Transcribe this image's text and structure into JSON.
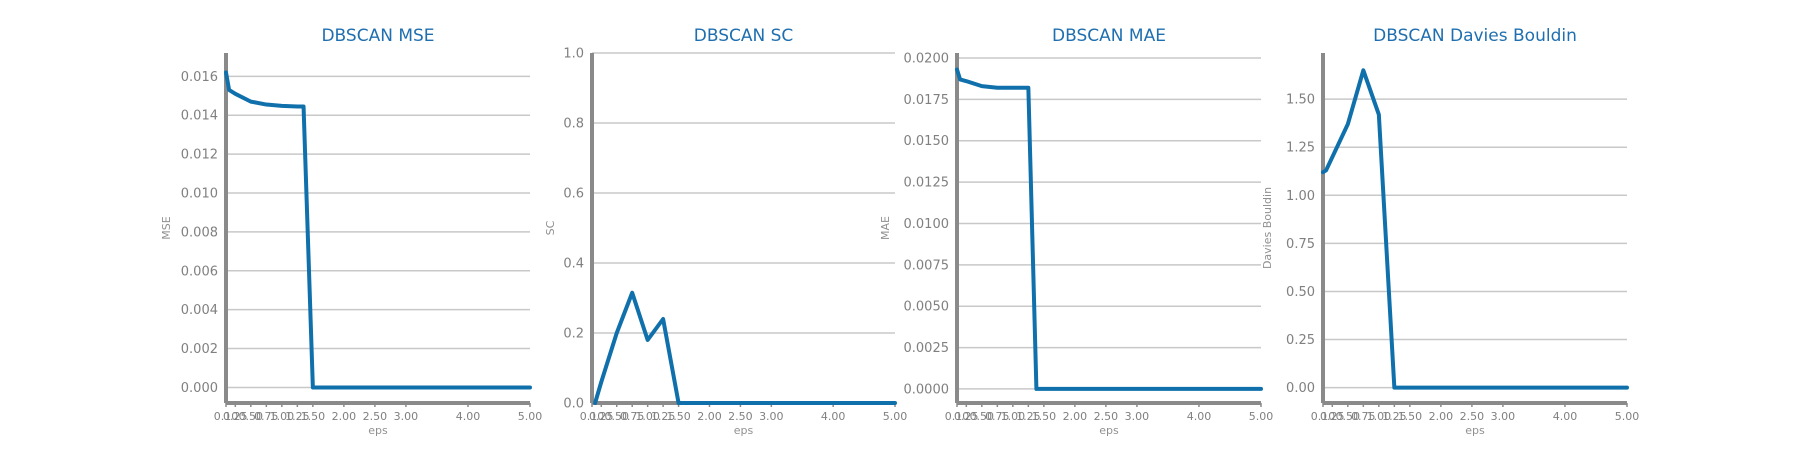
{
  "chart_data": [
    {
      "type": "line",
      "title": "DBSCAN MSE",
      "xlabel": "eps",
      "ylabel": "MSE",
      "xlim": [
        0.1,
        5.0
      ],
      "ylim": [
        -0.0008,
        0.0172
      ],
      "xticks": [
        0.1,
        0.25,
        0.5,
        0.75,
        1.0,
        1.25,
        1.5,
        2.0,
        2.5,
        3.0,
        4.0,
        5.0
      ],
      "xtick_labels": [
        "0.10",
        "0.25",
        "0.50",
        "0.75",
        "1.00",
        "1.25",
        "1.50",
        "2.00",
        "2.50",
        "3.00",
        "4.00",
        "5.00"
      ],
      "yticks": [
        0.0,
        0.002,
        0.004,
        0.006,
        0.008,
        0.01,
        0.012,
        0.014,
        0.016
      ],
      "ytick_labels": [
        "0.000",
        "0.002",
        "0.004",
        "0.006",
        "0.008",
        "0.010",
        "0.012",
        "0.014",
        "0.016"
      ],
      "grid": true,
      "x": [
        0.1,
        0.15,
        0.25,
        0.5,
        0.75,
        1.0,
        1.25,
        1.35,
        1.5,
        2.0,
        2.5,
        3.0,
        4.0,
        5.0
      ],
      "series": [
        {
          "values": [
            0.0162,
            0.0153,
            0.0151,
            0.0147,
            0.01455,
            0.01448,
            0.01445,
            0.01445,
            0.0,
            0.0,
            0.0,
            0.0,
            0.0,
            0.0
          ]
        }
      ]
    },
    {
      "type": "line",
      "title": "DBSCAN SC",
      "xlabel": "eps",
      "ylabel": "SC",
      "xlim": [
        0.1,
        5.0
      ],
      "ylim": [
        0.0,
        1.0
      ],
      "xticks": [
        0.1,
        0.25,
        0.5,
        0.75,
        1.0,
        1.25,
        1.5,
        2.0,
        2.5,
        3.0,
        4.0,
        5.0
      ],
      "xtick_labels": [
        "0.10",
        "0.25",
        "0.50",
        "0.75",
        "1.00",
        "1.25",
        "1.50",
        "2.00",
        "2.50",
        "3.00",
        "4.00",
        "5.00"
      ],
      "yticks": [
        0.0,
        0.2,
        0.4,
        0.6,
        0.8,
        1.0
      ],
      "ytick_labels": [
        "0.0",
        "0.2",
        "0.4",
        "0.6",
        "0.8",
        "1.0"
      ],
      "grid": true,
      "x": [
        0.15,
        0.2,
        0.25,
        0.5,
        0.75,
        1.0,
        1.25,
        1.5,
        2.0,
        2.5,
        3.0,
        4.0,
        5.0
      ],
      "series": [
        {
          "values": [
            0.0,
            0.03,
            0.06,
            0.2,
            0.315,
            0.18,
            0.24,
            0.0,
            0.0,
            0.0,
            0.0,
            0.0,
            0.0
          ]
        }
      ]
    },
    {
      "type": "line",
      "title": "DBSCAN MAE",
      "xlabel": "eps",
      "ylabel": "MAE",
      "xlim": [
        0.1,
        5.0
      ],
      "ylim": [
        -0.00085,
        0.0203
      ],
      "xticks": [
        0.1,
        0.25,
        0.5,
        0.75,
        1.0,
        1.25,
        1.5,
        2.0,
        2.5,
        3.0,
        4.0,
        5.0
      ],
      "xtick_labels": [
        "0.10",
        "0.25",
        "0.50",
        "0.75",
        "1.00",
        "1.25",
        "1.50",
        "2.00",
        "2.50",
        "3.00",
        "4.00",
        "5.00"
      ],
      "yticks": [
        0.0,
        0.0025,
        0.005,
        0.0075,
        0.01,
        0.0125,
        0.015,
        0.0175,
        0.02
      ],
      "ytick_labels": [
        "0.0000",
        "0.0025",
        "0.0050",
        "0.0075",
        "0.0100",
        "0.0125",
        "0.0150",
        "0.0175",
        "0.0200"
      ],
      "grid": true,
      "x": [
        0.1,
        0.15,
        0.25,
        0.5,
        0.75,
        1.0,
        1.25,
        1.38,
        1.5,
        2.0,
        2.5,
        3.0,
        4.0,
        5.0
      ],
      "series": [
        {
          "values": [
            0.0193,
            0.0187,
            0.0186,
            0.0183,
            0.0182,
            0.0182,
            0.0182,
            0.0,
            0.0,
            0.0,
            0.0,
            0.0,
            0.0,
            0.0
          ]
        }
      ]
    },
    {
      "type": "line",
      "title": "DBSCAN Davies Bouldin",
      "xlabel": "eps",
      "ylabel": "Davies Bouldin",
      "xlim": [
        0.1,
        5.0
      ],
      "ylim": [
        -0.08,
        1.74
      ],
      "xticks": [
        0.1,
        0.25,
        0.5,
        0.75,
        1.0,
        1.25,
        1.5,
        2.0,
        2.5,
        3.0,
        4.0,
        5.0
      ],
      "xtick_labels": [
        "0.10",
        "0.25",
        "0.50",
        "0.75",
        "1.00",
        "1.25",
        "1.50",
        "2.00",
        "2.50",
        "3.00",
        "4.00",
        "5.00"
      ],
      "yticks": [
        0.0,
        0.25,
        0.5,
        0.75,
        1.0,
        1.25,
        1.5
      ],
      "ytick_labels": [
        "0.00",
        "0.25",
        "0.50",
        "0.75",
        "1.00",
        "1.25",
        "1.50"
      ],
      "grid": true,
      "x": [
        0.1,
        0.15,
        0.5,
        0.75,
        1.0,
        1.25,
        1.45,
        1.5,
        2.0,
        2.5,
        3.0,
        4.0,
        5.0
      ],
      "series": [
        {
          "values": [
            1.12,
            1.13,
            1.37,
            1.65,
            1.42,
            0.0,
            0.0,
            0.0,
            0.0,
            0.0,
            0.0,
            0.0,
            0.0
          ]
        }
      ]
    }
  ]
}
